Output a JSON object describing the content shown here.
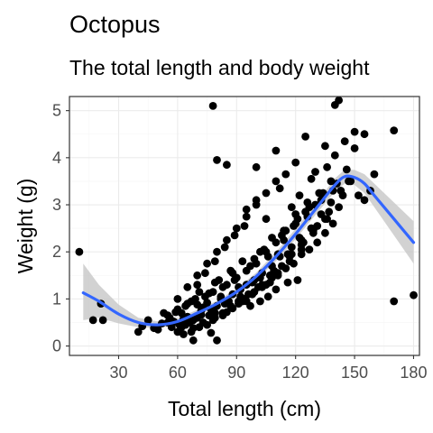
{
  "chart_data": {
    "type": "scatter",
    "title": "Octopus",
    "subtitle": "The total length and body weight",
    "xlabel": "Total length (cm)",
    "ylabel": "Weight (g)",
    "xlim": [
      5,
      183
    ],
    "ylim": [
      -0.2,
      5.3
    ],
    "x_ticks": [
      30,
      60,
      90,
      120,
      150,
      180
    ],
    "y_ticks": [
      0,
      1,
      2,
      3,
      4,
      5
    ],
    "grid": true,
    "legend": "none",
    "colors": {
      "points": "#000000",
      "smooth_line": "#3366ff",
      "confidence_band": "#c7c7c7",
      "panel_border": "#333333",
      "grid_major": "#ebebeb",
      "grid_minor": "#f5f5f5"
    },
    "smooth_trend": {
      "x": [
        12,
        20,
        30,
        40,
        50,
        60,
        70,
        80,
        90,
        100,
        110,
        120,
        130,
        140,
        145,
        150,
        155,
        160,
        170,
        180
      ],
      "y": [
        1.13,
        0.95,
        0.68,
        0.5,
        0.45,
        0.52,
        0.7,
        0.9,
        1.15,
        1.48,
        1.9,
        2.38,
        2.9,
        3.42,
        3.6,
        3.58,
        3.45,
        3.2,
        2.7,
        2.2
      ],
      "ci_lower": [
        0.55,
        0.6,
        0.48,
        0.4,
        0.38,
        0.45,
        0.63,
        0.84,
        1.08,
        1.4,
        1.8,
        2.27,
        2.78,
        3.28,
        3.45,
        3.42,
        3.25,
        2.95,
        2.35,
        1.75
      ],
      "ci_upper": [
        1.75,
        1.3,
        0.88,
        0.6,
        0.52,
        0.59,
        0.77,
        0.96,
        1.22,
        1.56,
        2.0,
        2.49,
        3.02,
        3.56,
        3.75,
        3.74,
        3.65,
        3.45,
        3.05,
        2.65
      ]
    },
    "points": {
      "x": [
        10,
        17,
        21,
        22,
        40,
        68,
        77,
        80,
        170,
        180,
        78,
        140,
        142,
        150,
        170,
        80,
        85,
        100,
        110,
        125,
        130,
        135,
        145,
        155,
        160,
        42,
        48,
        55,
        58,
        62,
        65,
        70,
        72,
        75,
        78,
        82,
        85,
        88,
        90,
        92,
        95,
        98,
        100,
        103,
        105,
        108,
        110,
        112,
        115,
        118,
        120,
        122,
        125,
        128,
        130,
        45,
        52,
        57,
        60,
        63,
        67,
        70,
        74,
        77,
        80,
        83,
        86,
        89,
        92,
        95,
        99,
        102,
        106,
        109,
        113,
        116,
        119,
        123,
        126,
        129,
        133,
        136,
        139,
        142,
        148,
        50,
        53,
        58,
        61,
        64,
        66,
        69,
        72,
        76,
        79,
        81,
        84,
        87,
        91,
        94,
        97,
        101,
        104,
        107,
        111,
        114,
        117,
        121,
        124,
        127,
        131,
        134,
        137,
        141,
        144,
        146,
        56,
        59,
        62,
        65,
        68,
        71,
        73,
        76,
        79,
        82,
        85,
        88,
        91,
        93,
        96,
        99,
        102,
        105,
        108,
        111,
        114,
        117,
        120,
        123,
        126,
        129,
        132,
        135,
        138,
        60,
        64,
        68,
        73,
        78,
        83,
        88,
        93,
        98,
        103,
        108,
        113,
        118,
        123,
        128,
        133,
        138,
        143,
        147,
        152,
        55,
        60,
        65,
        70,
        75,
        80,
        85,
        90,
        95,
        100,
        105,
        110,
        115,
        120,
        140,
        150,
        63,
        67,
        71,
        75,
        79,
        83,
        87,
        91,
        95,
        99,
        103,
        107,
        111,
        115,
        119,
        123,
        127,
        131,
        135,
        139,
        155,
        158,
        95,
        100,
        105,
        112,
        118,
        122,
        128,
        136,
        70,
        74,
        79,
        84,
        89,
        94,
        97,
        102,
        106,
        110,
        116,
        121
      ],
      "y": [
        2.0,
        0.55,
        0.9,
        0.55,
        0.3,
        0.12,
        0.28,
        0.12,
        0.95,
        1.08,
        5.1,
        5.12,
        5.22,
        4.55,
        4.58,
        3.95,
        3.85,
        3.8,
        4.15,
        4.45,
        3.7,
        4.25,
        4.35,
        4.5,
        3.65,
        0.42,
        0.38,
        0.65,
        0.5,
        0.7,
        0.62,
        0.88,
        0.75,
        0.92,
        1.15,
        1.05,
        1.3,
        1.1,
        1.45,
        1.2,
        1.6,
        1.35,
        1.75,
        1.55,
        2.0,
        1.7,
        2.2,
        1.9,
        2.45,
        2.1,
        2.6,
        2.3,
        2.85,
        2.5,
        3.0,
        0.55,
        0.48,
        0.4,
        0.78,
        0.58,
        0.95,
        0.6,
        1.05,
        0.78,
        0.85,
        1.25,
        0.95,
        1.4,
        1.05,
        1.3,
        1.85,
        1.45,
        1.9,
        1.6,
        2.35,
        1.95,
        2.55,
        2.05,
        2.75,
        2.4,
        3.1,
        2.7,
        3.3,
        2.95,
        3.5,
        0.35,
        0.7,
        0.52,
        0.45,
        0.85,
        0.5,
        1.0,
        0.66,
        1.12,
        0.7,
        1.4,
        0.9,
        1.6,
        1.25,
        1.0,
        1.7,
        1.25,
        2.05,
        1.5,
        1.95,
        2.45,
        1.8,
        2.7,
        2.2,
        2.95,
        2.55,
        3.25,
        2.85,
        3.45,
        3.2,
        3.75,
        0.6,
        0.72,
        0.4,
        0.9,
        0.55,
        1.15,
        0.82,
        0.65,
        1.35,
        1.0,
        0.72,
        1.55,
        0.95,
        1.8,
        1.1,
        1.4,
        2.0,
        1.3,
        2.3,
        1.55,
        2.25,
        1.9,
        2.8,
        2.15,
        3.05,
        2.45,
        3.25,
        2.7,
        3.5,
        0.3,
        0.45,
        0.38,
        0.5,
        0.55,
        0.65,
        0.8,
        0.95,
        1.1,
        1.3,
        1.45,
        1.7,
        1.95,
        2.25,
        2.5,
        2.8,
        3.05,
        3.3,
        3.5,
        3.2,
        0.5,
        1.0,
        1.25,
        1.5,
        1.75,
        2.0,
        2.25,
        2.5,
        2.75,
        3.0,
        3.25,
        3.5,
        3.65,
        3.9,
        4.05,
        4.2,
        0.25,
        0.3,
        0.4,
        0.45,
        0.6,
        0.7,
        0.85,
        0.9,
        0.95,
        1.15,
        1.25,
        1.35,
        1.5,
        1.65,
        1.75,
        1.95,
        2.05,
        2.2,
        2.4,
        2.6,
        3.1,
        3.3,
        2.9,
        3.1,
        2.7,
        3.35,
        2.95,
        3.2,
        3.55,
        3.8,
        1.3,
        1.55,
        1.8,
        2.1,
        2.35,
        2.55,
        0.85,
        0.95,
        1.05,
        1.2,
        1.35,
        1.4
      ]
    }
  }
}
